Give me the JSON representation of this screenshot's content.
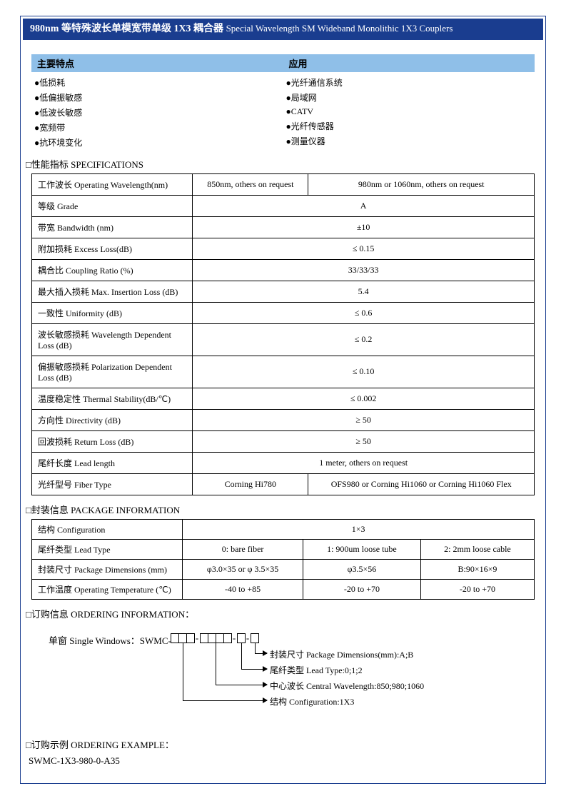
{
  "colors": {
    "title_bg": "#1a3d8f",
    "header_bg": "#8fbfe8",
    "border": "#000000",
    "text": "#000000"
  },
  "title": {
    "cn": "980nm 等特殊波长单模宽带单级 1X3 耦合器",
    "en": "Special Wavelength SM Wideband Monolithic 1X3 Couplers"
  },
  "header": {
    "features": "主要特点",
    "apps": "应用"
  },
  "features": [
    "●低损耗",
    "●低偏振敏感",
    "●低波长敏感",
    "●宽频带",
    "●抗环境变化"
  ],
  "applications": [
    "●光纤通信系统",
    "●局域网",
    "●CATV",
    "●光纤传感器",
    "●测量仪器"
  ],
  "sections": {
    "specs": "□性能指标  SPECIFICATIONS",
    "pkg": "□封装信息  PACKAGE INFORMATION",
    "order": "□订购信息 ORDERING INFORMATION：",
    "example": "□订购示例 ORDERING EXAMPLE："
  },
  "specs": [
    {
      "label": "工作波长 Operating Wavelength(nm)",
      "values": [
        "850nm, others on request",
        "980nm or 1060nm, others on request"
      ]
    },
    {
      "label": "等级 Grade",
      "values": [
        "A"
      ]
    },
    {
      "label": "带宽 Bandwidth (nm)",
      "values": [
        "±10"
      ]
    },
    {
      "label": "附加损耗  Excess Loss(dB)",
      "values": [
        "≤  0.15"
      ]
    },
    {
      "label": "耦合比 Coupling Ratio (%)",
      "values": [
        "33/33/33"
      ]
    },
    {
      "label": "最大插入损耗 Max. Insertion Loss (dB)",
      "values": [
        "5.4"
      ]
    },
    {
      "label": "一致性  Uniformity (dB)",
      "values": [
        "≤  0.6"
      ]
    },
    {
      "label": "波长敏感损耗  Wavelength Dependent Loss (dB)",
      "values": [
        "≤  0.2"
      ]
    },
    {
      "label": "偏振敏感损耗 Polarization Dependent Loss (dB)",
      "values": [
        "≤  0.10"
      ]
    },
    {
      "label": "温度稳定性 Thermal Stability(dB/℃)",
      "values": [
        "≤  0.002"
      ]
    },
    {
      "label": "方向性 Directivity (dB)",
      "values": [
        "≥  50"
      ]
    },
    {
      "label": "回波损耗 Return Loss (dB)",
      "values": [
        "≥  50"
      ]
    },
    {
      "label": "尾纤长度  Lead length",
      "values": [
        "1 meter, others on request"
      ]
    },
    {
      "label": "光纤型号 Fiber Type",
      "values": [
        "Corning Hi780",
        "OFS980 or Corning Hi1060 or Corning Hi1060 Flex"
      ]
    }
  ],
  "pkg": [
    {
      "label": "结构 Configuration",
      "values": [
        "1×3"
      ]
    },
    {
      "label": "尾纤类型 Lead Type",
      "values": [
        "0:    bare fiber",
        "1: 900um loose tube",
        "2: 2mm loose cable"
      ]
    },
    {
      "label": "封装尺寸  Package Dimensions (mm)",
      "values": [
        "φ3.0×35   or  φ  3.5×35",
        "φ3.5×56",
        "B:90×16×9"
      ]
    },
    {
      "label": "工作温度 Operating Temperature (℃)",
      "values": [
        "-40 to +85",
        "-20 to +70",
        "-20 to +70"
      ]
    }
  ],
  "ordering": {
    "label": "单窗 Single Windows：SWMC-",
    "segs": [
      3,
      4,
      1,
      1
    ],
    "desc": [
      "封装尺寸 Package Dimensions(mm):A;B",
      "尾纤类型 Lead Type:0;1;2",
      "中心波长 Central Wavelength:850;980;1060",
      "结构 Configuration:1X3"
    ]
  },
  "example_code": "SWMC-1X3-980-0-A35"
}
